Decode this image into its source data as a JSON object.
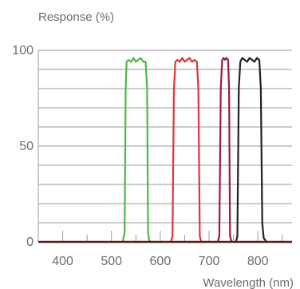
{
  "chart_data": {
    "type": "line",
    "ylabel": "Response (%)",
    "xlabel": "Wavelength (nm)",
    "xlim": [
      350,
      870
    ],
    "ylim": [
      0,
      100
    ],
    "x_ticks": [
      400,
      500,
      600,
      700,
      800
    ],
    "y_tick_labels": [
      {
        "value": 0,
        "label": "0"
      },
      {
        "value": 50,
        "label": "50"
      },
      {
        "value": 100,
        "label": "100"
      }
    ],
    "grid": {
      "horizontal_step": 10
    },
    "baseline_color": "#5a1a1a",
    "series": [
      {
        "color": "#4cb848",
        "x": [
          523,
          527,
          529,
          531,
          535,
          540,
          545,
          550,
          555,
          560,
          565,
          570,
          573,
          575,
          577,
          580
        ],
        "y": [
          0,
          5,
          80,
          94,
          95,
          94,
          96,
          94,
          95,
          96,
          94,
          94,
          80,
          5,
          1,
          0
        ]
      },
      {
        "color": "#e0343a",
        "x": [
          622,
          625,
          628,
          631,
          635,
          640,
          645,
          650,
          655,
          660,
          665,
          670,
          675,
          678,
          681,
          684
        ],
        "y": [
          0,
          3,
          80,
          94,
          95,
          94,
          96,
          94,
          95,
          96,
          94,
          95,
          94,
          80,
          3,
          0
        ]
      },
      {
        "color": "#9b1b3b",
        "x": [
          718,
          721,
          724,
          727,
          730,
          733,
          736,
          739,
          741,
          743,
          746
        ],
        "y": [
          0,
          3,
          80,
          95,
          96,
          95,
          96,
          95,
          80,
          3,
          0
        ]
      },
      {
        "color": "#222222",
        "x": [
          755,
          758,
          761,
          764,
          768,
          773,
          778,
          783,
          788,
          793,
          798,
          803,
          806,
          809,
          812,
          818
        ],
        "y": [
          0,
          3,
          80,
          94,
          96,
          95,
          94,
          96,
          95,
          94,
          96,
          95,
          80,
          10,
          2,
          0
        ]
      }
    ]
  }
}
